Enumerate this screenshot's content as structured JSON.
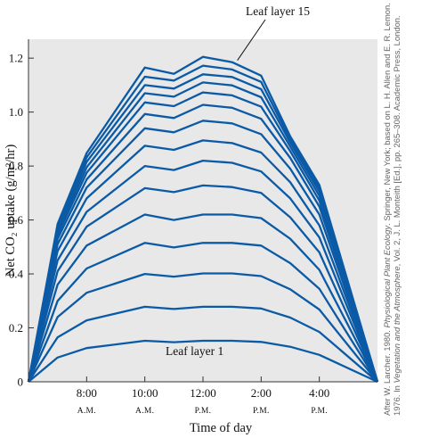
{
  "chart_data": {
    "type": "line",
    "title": "",
    "xlabel": "Time of day",
    "ylabel": "Net CO₂ uptake (g/m²/hr)",
    "xlim": [
      6,
      18
    ],
    "ylim": [
      0,
      1.27
    ],
    "grid": false,
    "background": "#e8e8e8",
    "line_color": "#0b5aa6",
    "x_ticks": [
      {
        "value": 8,
        "label": "8:00",
        "sub": "A.M."
      },
      {
        "value": 10,
        "label": "10:00",
        "sub": "A.M."
      },
      {
        "value": 12,
        "label": "12:00",
        "sub": "P.M."
      },
      {
        "value": 14,
        "label": "2:00",
        "sub": "P.M."
      },
      {
        "value": 16,
        "label": "4:00",
        "sub": "P.M."
      }
    ],
    "y_ticks": [
      {
        "value": 0,
        "label": "0"
      },
      {
        "value": 0.2,
        "label": "0.2"
      },
      {
        "value": 0.4,
        "label": "0.4"
      },
      {
        "value": 0.6,
        "label": "0.6"
      },
      {
        "value": 0.8,
        "label": "0.8"
      },
      {
        "value": 1.0,
        "label": "1.0"
      },
      {
        "value": 1.2,
        "label": "1.2"
      }
    ],
    "x": [
      6,
      7,
      8,
      10,
      11,
      12,
      13,
      14,
      15,
      16,
      18
    ],
    "series": [
      {
        "values": [
          0,
          0.09,
          0.125,
          0.152,
          0.147,
          0.152,
          0.152,
          0.148,
          0.13,
          0.1,
          0
        ]
      },
      {
        "values": [
          0,
          0.165,
          0.228,
          0.278,
          0.27,
          0.278,
          0.278,
          0.272,
          0.238,
          0.185,
          0
        ]
      },
      {
        "values": [
          0,
          0.24,
          0.33,
          0.4,
          0.39,
          0.402,
          0.402,
          0.392,
          0.343,
          0.268,
          0
        ]
      },
      {
        "values": [
          0,
          0.3,
          0.42,
          0.515,
          0.498,
          0.515,
          0.515,
          0.505,
          0.44,
          0.345,
          0
        ]
      },
      {
        "values": [
          0,
          0.36,
          0.505,
          0.62,
          0.6,
          0.62,
          0.62,
          0.607,
          0.53,
          0.415,
          0
        ]
      },
      {
        "values": [
          0,
          0.41,
          0.575,
          0.718,
          0.703,
          0.728,
          0.722,
          0.7,
          0.61,
          0.48,
          0
        ]
      },
      {
        "values": [
          0,
          0.45,
          0.63,
          0.8,
          0.785,
          0.82,
          0.812,
          0.78,
          0.68,
          0.535,
          0
        ]
      },
      {
        "values": [
          0,
          0.485,
          0.68,
          0.875,
          0.86,
          0.895,
          0.885,
          0.85,
          0.74,
          0.58,
          0
        ]
      },
      {
        "values": [
          0,
          0.51,
          0.72,
          0.94,
          0.925,
          0.968,
          0.958,
          0.918,
          0.79,
          0.62,
          0
        ]
      },
      {
        "values": [
          0,
          0.53,
          0.75,
          0.993,
          0.978,
          1.027,
          1.016,
          0.975,
          0.83,
          0.65,
          0
        ]
      },
      {
        "values": [
          0,
          0.545,
          0.775,
          1.036,
          1.022,
          1.073,
          1.062,
          1.02,
          0.855,
          0.672,
          0
        ]
      },
      {
        "values": [
          0,
          0.555,
          0.795,
          1.07,
          1.057,
          1.11,
          1.099,
          1.055,
          0.872,
          0.69,
          0
        ]
      },
      {
        "values": [
          0,
          0.565,
          0.815,
          1.1,
          1.087,
          1.14,
          1.13,
          1.085,
          0.887,
          0.705,
          0
        ]
      },
      {
        "values": [
          0,
          0.575,
          0.832,
          1.131,
          1.117,
          1.172,
          1.158,
          1.112,
          0.898,
          0.718,
          0
        ]
      },
      {
        "values": [
          0,
          0.585,
          0.848,
          1.165,
          1.142,
          1.205,
          1.185,
          1.135,
          0.91,
          0.73,
          0
        ]
      }
    ],
    "annotations": [
      {
        "text": "Leaf layer 15"
      },
      {
        "text": "Leaf layer 1"
      }
    ]
  },
  "credit": {
    "line1_prefix": "After W. Larcher. 1980.",
    "line1_italic": "Physiological Plant Ecology",
    "line1_suffix": ". Springer, New York; based on L. H. Allen and E. R. Lemon.",
    "line2_prefix": "1976. In",
    "line2_italic": "Vegetation and the Atmosphere",
    "line2_suffix": ", Vol. 2, J. L. Monteith [Ed.], pp. 265–308. Academic Press, London."
  }
}
